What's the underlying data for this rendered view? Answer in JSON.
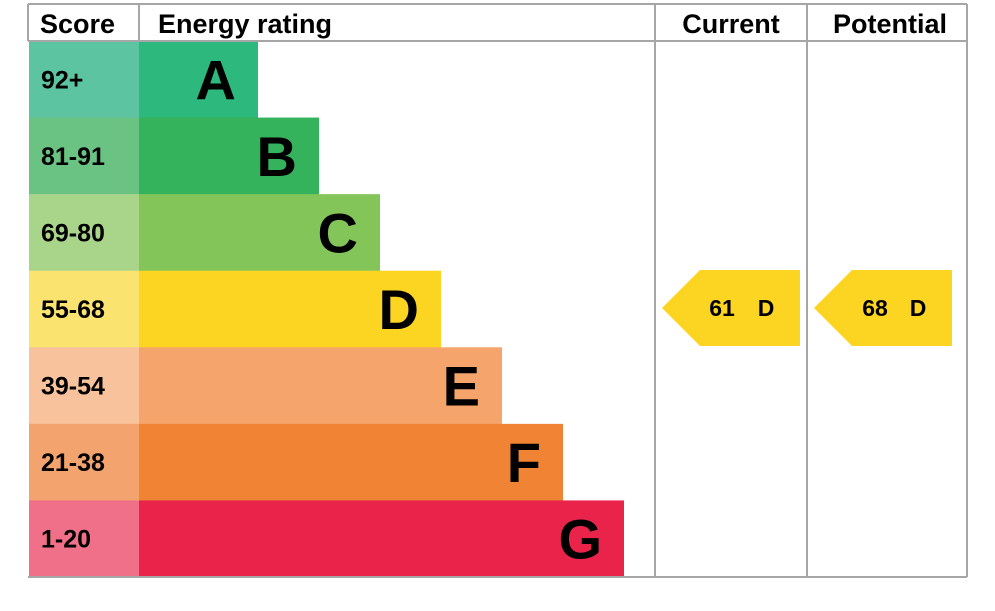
{
  "chart_data": {
    "type": "bar",
    "headers": {
      "score": "Score",
      "rating": "Energy rating",
      "current": "Current",
      "potential": "Potential"
    },
    "bands": [
      {
        "score": "92+",
        "letter": "A",
        "color": "#2db87e",
        "score_bg": "#5cc4a0"
      },
      {
        "score": "81-91",
        "letter": "B",
        "color": "#34b25c",
        "score_bg": "#6ac283"
      },
      {
        "score": "69-80",
        "letter": "C",
        "color": "#84c55a",
        "score_bg": "#a9d58a"
      },
      {
        "score": "55-68",
        "letter": "D",
        "color": "#fcd422",
        "score_bg": "#fbe36f"
      },
      {
        "score": "39-54",
        "letter": "E",
        "color": "#f5a56b",
        "score_bg": "#f8c29c"
      },
      {
        "score": "21-38",
        "letter": "F",
        "color": "#f08334",
        "score_bg": "#f3a46e"
      },
      {
        "score": "1-20",
        "letter": "G",
        "color": "#ea234a",
        "score_bg": "#ef7088"
      }
    ],
    "current": {
      "value": 61,
      "letter": "D",
      "color": "#fcd422"
    },
    "potential": {
      "value": 68,
      "letter": "D",
      "color": "#fcd422"
    }
  }
}
